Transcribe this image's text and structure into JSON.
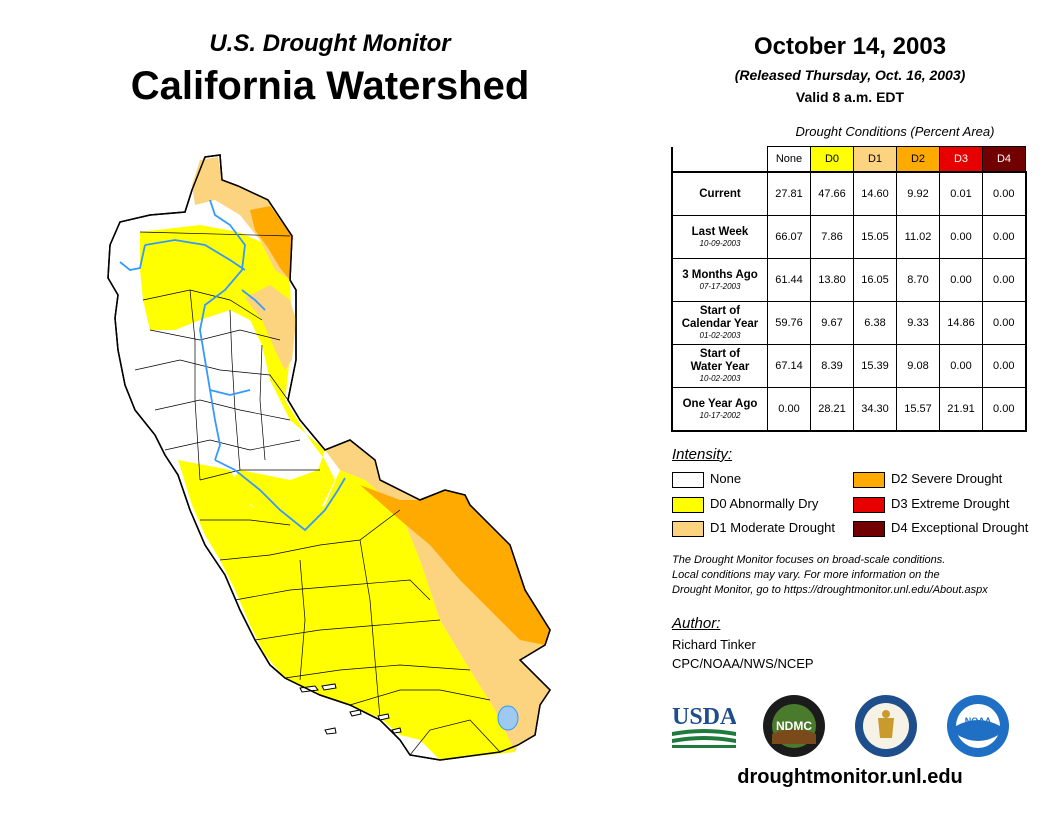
{
  "header": {
    "subtitle": "U.S. Drought Monitor",
    "title": "California Watershed",
    "date": "October 14, 2003",
    "released": "(Released Thursday, Oct. 16, 2003)",
    "valid": "Valid 8 a.m. EDT"
  },
  "table": {
    "caption": "Drought Conditions (Percent Area)",
    "columns": [
      "None",
      "D0",
      "D1",
      "D2",
      "D3",
      "D4"
    ],
    "rows": [
      {
        "label": "Current",
        "date": "",
        "values": [
          "27.81",
          "47.66",
          "14.60",
          "9.92",
          "0.01",
          "0.00"
        ]
      },
      {
        "label": "Last Week",
        "date": "10-09-2003",
        "values": [
          "66.07",
          "7.86",
          "15.05",
          "11.02",
          "0.00",
          "0.00"
        ]
      },
      {
        "label": "3 Months Ago",
        "date": "07-17-2003",
        "values": [
          "61.44",
          "13.80",
          "16.05",
          "8.70",
          "0.00",
          "0.00"
        ]
      },
      {
        "label": "Start of Calendar Year",
        "date": "01-02-2003",
        "values": [
          "59.76",
          "9.67",
          "6.38",
          "9.33",
          "14.86",
          "0.00"
        ]
      },
      {
        "label": "Start of Water Year",
        "date": "10-02-2003",
        "values": [
          "67.14",
          "8.39",
          "15.39",
          "9.08",
          "0.00",
          "0.00"
        ]
      },
      {
        "label": "One Year Ago",
        "date": "10-17-2002",
        "values": [
          "0.00",
          "28.21",
          "34.30",
          "15.57",
          "21.91",
          "0.00"
        ]
      }
    ]
  },
  "legend": {
    "title": "Intensity:",
    "items": [
      {
        "label": "None",
        "color": "#ffffff"
      },
      {
        "label": "D0 Abnormally Dry",
        "color": "#ffff00"
      },
      {
        "label": "D1 Moderate Drought",
        "color": "#fcd37f"
      },
      {
        "label": "D2 Severe Drought",
        "color": "#ffaa00"
      },
      {
        "label": "D3 Extreme Drought",
        "color": "#e60000"
      },
      {
        "label": "D4 Exceptional Drought",
        "color": "#730000"
      }
    ]
  },
  "note": {
    "line1": "The Drought Monitor focuses on broad-scale conditions.",
    "line2": "Local conditions may vary. For more information on the",
    "line3": "Drought Monitor, go to https://droughtmonitor.unl.edu/About.aspx"
  },
  "author": {
    "title": "Author:",
    "name": "Richard Tinker",
    "org": "CPC/NOAA/NWS/NCEP"
  },
  "logos": {
    "usda": "USDA",
    "ndmc": "NDMC",
    "noaa": "NOAA"
  },
  "footer": {
    "website": "droughtmonitor.unl.edu"
  },
  "colors": {
    "none": "#ffffff",
    "d0": "#ffff00",
    "d1": "#fcd37f",
    "d2": "#ffaa00",
    "d3": "#e60000",
    "d4": "#730000",
    "river": "#3399ff",
    "border": "#000000"
  }
}
